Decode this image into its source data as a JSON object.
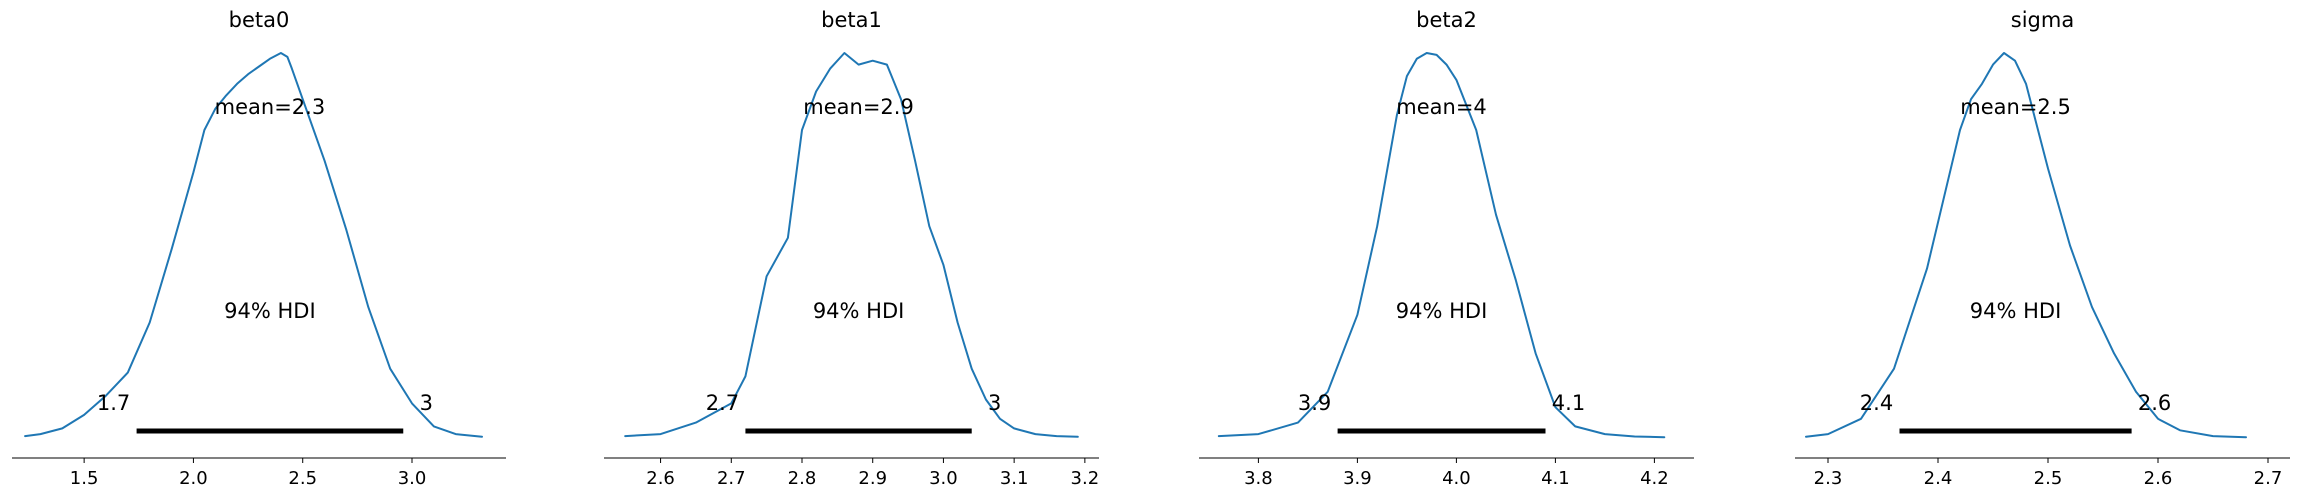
{
  "chart_data": [
    {
      "type": "area",
      "title": "beta0",
      "xlim": [
        1.17,
        3.43
      ],
      "xticks": [
        "1.5",
        "2.0",
        "2.5",
        "3.0"
      ],
      "xtick_values": [
        1.5,
        2.0,
        2.5,
        3.0
      ],
      "mean_label": "mean=2.3",
      "hdi_label": "94% HDI",
      "hdi_low_label": "1.7",
      "hdi_high_label": "3",
      "hdi": [
        1.74,
        2.96
      ],
      "x": [
        1.23,
        1.3,
        1.4,
        1.5,
        1.6,
        1.7,
        1.8,
        1.9,
        2.0,
        2.05,
        2.1,
        2.15,
        2.2,
        2.25,
        2.3,
        2.35,
        2.4,
        2.43,
        2.45,
        2.5,
        2.6,
        2.7,
        2.8,
        2.9,
        3.0,
        3.1,
        3.2,
        3.32
      ],
      "density": [
        0.005,
        0.01,
        0.025,
        0.06,
        0.11,
        0.17,
        0.3,
        0.49,
        0.69,
        0.8,
        0.855,
        0.89,
        0.92,
        0.945,
        0.965,
        0.985,
        1.0,
        0.99,
        0.96,
        0.88,
        0.72,
        0.54,
        0.34,
        0.18,
        0.09,
        0.03,
        0.01,
        0.003
      ]
    },
    {
      "type": "area",
      "title": "beta1",
      "xlim": [
        2.52,
        3.22
      ],
      "xticks": [
        "2.6",
        "2.7",
        "2.8",
        "2.9",
        "3.0",
        "3.1",
        "3.2"
      ],
      "xtick_values": [
        2.6,
        2.7,
        2.8,
        2.9,
        3.0,
        3.1,
        3.2
      ],
      "mean_label": "mean=2.9",
      "hdi_label": "94% HDI",
      "hdi_low_label": "2.7",
      "hdi_high_label": "3",
      "hdi": [
        2.72,
        3.04
      ],
      "x": [
        2.55,
        2.6,
        2.65,
        2.7,
        2.72,
        2.75,
        2.78,
        2.8,
        2.82,
        2.84,
        2.86,
        2.88,
        2.9,
        2.92,
        2.94,
        2.96,
        2.98,
        3.0,
        3.02,
        3.04,
        3.06,
        3.08,
        3.1,
        3.13,
        3.16,
        3.19
      ],
      "density": [
        0.005,
        0.01,
        0.04,
        0.09,
        0.16,
        0.42,
        0.52,
        0.8,
        0.9,
        0.96,
        1.0,
        0.97,
        0.98,
        0.97,
        0.88,
        0.72,
        0.55,
        0.45,
        0.3,
        0.18,
        0.1,
        0.05,
        0.025,
        0.01,
        0.005,
        0.003
      ]
    },
    {
      "type": "area",
      "title": "beta2",
      "xlim": [
        3.74,
        4.24
      ],
      "xticks": [
        "3.8",
        "3.9",
        "4.0",
        "4.1",
        "4.2"
      ],
      "xtick_values": [
        3.8,
        3.9,
        4.0,
        4.1,
        4.2
      ],
      "mean_label": "mean=4",
      "hdi_label": "94% HDI",
      "hdi_low_label": "3.9",
      "hdi_high_label": "4.1",
      "hdi": [
        3.88,
        4.09
      ],
      "x": [
        3.76,
        3.8,
        3.84,
        3.87,
        3.9,
        3.92,
        3.94,
        3.95,
        3.96,
        3.97,
        3.98,
        3.99,
        4.0,
        4.02,
        4.04,
        4.06,
        4.08,
        4.1,
        4.12,
        4.15,
        4.18,
        4.21
      ],
      "density": [
        0.005,
        0.01,
        0.04,
        0.12,
        0.32,
        0.55,
        0.84,
        0.94,
        0.985,
        1.0,
        0.995,
        0.97,
        0.93,
        0.8,
        0.58,
        0.41,
        0.22,
        0.08,
        0.03,
        0.01,
        0.004,
        0.002
      ]
    },
    {
      "type": "area",
      "title": "sigma",
      "xlim": [
        2.27,
        2.72
      ],
      "xticks": [
        "2.3",
        "2.4",
        "2.5",
        "2.6",
        "2.7"
      ],
      "xtick_values": [
        2.3,
        2.4,
        2.5,
        2.6,
        2.7
      ],
      "mean_label": "mean=2.5",
      "hdi_label": "94% HDI",
      "hdi_low_label": "2.4",
      "hdi_high_label": "2.6",
      "hdi": [
        2.365,
        2.576
      ],
      "x": [
        2.28,
        2.3,
        2.33,
        2.36,
        2.39,
        2.41,
        2.42,
        2.43,
        2.44,
        2.45,
        2.46,
        2.47,
        2.48,
        2.5,
        2.52,
        2.54,
        2.56,
        2.58,
        2.6,
        2.62,
        2.65,
        2.68
      ],
      "density": [
        0.003,
        0.01,
        0.05,
        0.18,
        0.44,
        0.68,
        0.8,
        0.88,
        0.92,
        0.97,
        1.0,
        0.98,
        0.92,
        0.7,
        0.5,
        0.34,
        0.22,
        0.12,
        0.05,
        0.02,
        0.005,
        0.002
      ]
    }
  ],
  "colors": {
    "curve": "#1f77b4",
    "hdi_bar": "#000000",
    "axis": "#000000"
  }
}
